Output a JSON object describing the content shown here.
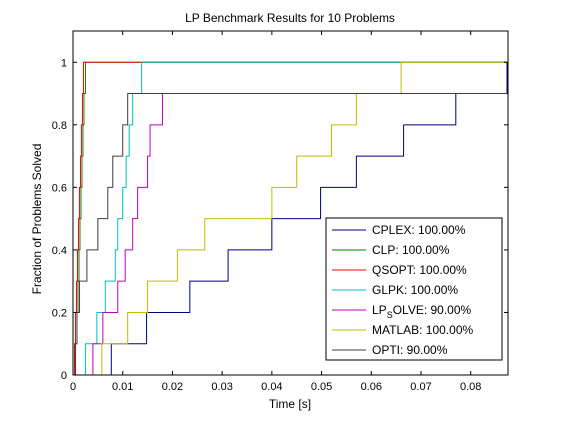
{
  "chart_data": {
    "type": "line",
    "step": true,
    "title": "LP Benchmark Results for 10 Problems",
    "xlabel": "Time [s]",
    "ylabel": "Fraction of Problems Solved",
    "xlim": [
      0,
      0.0875
    ],
    "ylim": [
      0,
      1.1
    ],
    "x_ticks": [
      0,
      0.01,
      0.02,
      0.03,
      0.04,
      0.05,
      0.06,
      0.07,
      0.08
    ],
    "x_tick_labels": [
      "0",
      "0.01",
      "0.02",
      "0.03",
      "0.04",
      "0.05",
      "0.06",
      "0.07",
      "0.08"
    ],
    "y_ticks": [
      0,
      0.2,
      0.4,
      0.6,
      0.8,
      1
    ],
    "y_tick_labels": [
      "0",
      "0.2",
      "0.4",
      "0.6",
      "0.8",
      "1"
    ],
    "grid": false,
    "legend_position": "bottom-right",
    "series": [
      {
        "name": "CPLEX",
        "legend_label": "CPLEX: 100.00%",
        "color": "#00007f",
        "x": [
          0.0077,
          0.011,
          0.0148,
          0.0235,
          0.0312,
          0.04,
          0.0498,
          0.057,
          0.0665,
          0.077,
          0.0873
        ],
        "y": [
          0.1,
          0.1,
          0.2,
          0.3,
          0.4,
          0.5,
          0.6,
          0.7,
          0.8,
          0.9,
          1.0
        ]
      },
      {
        "name": "CLP",
        "legend_label": "CLP: 100.00%",
        "color": "#007f00",
        "x": [
          0.0004,
          0.0008,
          0.001,
          0.0012,
          0.0014,
          0.0016,
          0.0018,
          0.002,
          0.0022,
          0.0025
        ],
        "y": [
          0.1,
          0.2,
          0.3,
          0.4,
          0.5,
          0.6,
          0.7,
          0.8,
          0.9,
          1.0
        ]
      },
      {
        "name": "QSOPT",
        "legend_label": "QSOPT: 100.00%",
        "color": "#ff0000",
        "x": [
          0.0003,
          0.0005,
          0.0007,
          0.0009,
          0.0011,
          0.0013,
          0.0015,
          0.0017,
          0.0019,
          0.0021
        ],
        "y": [
          0.1,
          0.2,
          0.3,
          0.4,
          0.5,
          0.6,
          0.7,
          0.8,
          0.9,
          1.0
        ]
      },
      {
        "name": "GLPK",
        "legend_label": "GLPK: 100.00%",
        "color": "#00bfbf",
        "x": [
          0.0025,
          0.0048,
          0.0065,
          0.0085,
          0.009,
          0.01,
          0.0107,
          0.0113,
          0.012,
          0.0138
        ],
        "y": [
          0.1,
          0.2,
          0.3,
          0.4,
          0.5,
          0.6,
          0.7,
          0.8,
          0.9,
          1.0
        ]
      },
      {
        "name": "LPSOLVE",
        "legend_label_main": "LP",
        "legend_label_sub": "S",
        "legend_label_rest": "OLVE: 90.00%",
        "color": "#bf00bf",
        "x": [
          0.004,
          0.006,
          0.009,
          0.0105,
          0.012,
          0.013,
          0.015,
          0.0155,
          0.018
        ],
        "y": [
          0.1,
          0.2,
          0.3,
          0.4,
          0.5,
          0.6,
          0.7,
          0.8,
          0.9
        ]
      },
      {
        "name": "MATLAB",
        "legend_label": "MATLAB: 100.00%",
        "color": "#bfbf00",
        "x": [
          0.0058,
          0.011,
          0.015,
          0.021,
          0.0265,
          0.04,
          0.045,
          0.052,
          0.057,
          0.066
        ],
        "y": [
          0.1,
          0.2,
          0.3,
          0.4,
          0.5,
          0.6,
          0.7,
          0.8,
          0.9,
          1.0
        ]
      },
      {
        "name": "OPTI",
        "legend_label": "OPTI: 90.00%",
        "color": "#3f3f3f",
        "x": [
          0.0005,
          0.0008,
          0.0013,
          0.0028,
          0.005,
          0.007,
          0.008,
          0.01,
          0.011
        ],
        "y": [
          0.1,
          0.2,
          0.3,
          0.4,
          0.5,
          0.6,
          0.7,
          0.8,
          0.9
        ]
      }
    ]
  }
}
